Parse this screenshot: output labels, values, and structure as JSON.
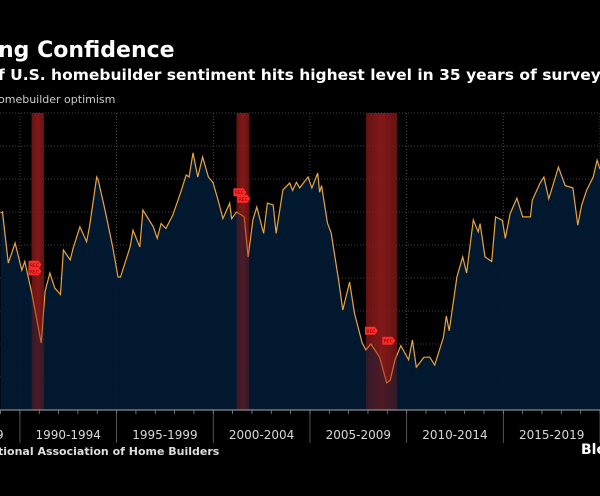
{
  "header": {
    "title": "ng Confidence",
    "subtitle": "f U.S. homebuilder sentiment hits highest level in 35 years of survey",
    "legend_label": "omebuilder optimism"
  },
  "footer": {
    "source": "tional Association of Home Builders",
    "brand": "Blo"
  },
  "colors": {
    "background": "#000000",
    "area_fill": "#021a33",
    "line": "#e8a444",
    "recession": "#8b1a1a",
    "marker": "#ff2a2a"
  },
  "chart_data": {
    "type": "area",
    "xlim": [
      1988.97,
      2020.0
    ],
    "ylim": [
      0,
      90
    ],
    "grid": true,
    "x_tick_labels": [
      {
        "label": "9",
        "at": 1988.5
      },
      {
        "label": "1990-1994",
        "at": 1992.5
      },
      {
        "label": "1995-1999",
        "at": 1997.5
      },
      {
        "label": "2000-2004",
        "at": 2002.5
      },
      {
        "label": "2005-2009",
        "at": 2007.5
      },
      {
        "label": "2010-2014",
        "at": 2012.5
      },
      {
        "label": "2015-2019",
        "at": 2017.5
      }
    ],
    "x_boundaries": [
      1990,
      1995,
      2000,
      2005,
      2010,
      2015,
      2020
    ],
    "y_gridlines": [
      10,
      20,
      30,
      40,
      50,
      60,
      70,
      80,
      90
    ],
    "recessions": [
      [
        1990.6,
        1991.25
      ],
      [
        2001.2,
        2001.85
      ],
      [
        2007.9,
        2009.5
      ]
    ],
    "markers": [
      {
        "label": "REC",
        "x": 1990.7,
        "y": 44
      },
      {
        "label": "REC",
        "x": 1990.7,
        "y": 42
      },
      {
        "label": "REC",
        "x": 2001.3,
        "y": 66
      },
      {
        "label": "REC",
        "x": 2001.5,
        "y": 64
      },
      {
        "label": "REC",
        "x": 2008.1,
        "y": 24
      },
      {
        "label": "REC",
        "x": 2009.0,
        "y": 21
      }
    ],
    "series": [
      {
        "x": [
          1989.0,
          1989.1,
          1989.4,
          1989.75,
          1990.1,
          1990.25,
          1990.6,
          1991.1,
          1991.3,
          1991.55,
          1991.8,
          1992.1,
          1992.25,
          1992.6,
          1992.75,
          1993.1,
          1993.45,
          1993.6,
          1993.97,
          1994.05,
          1994.4,
          1994.8,
          1995.07,
          1995.2,
          1995.7,
          1995.85,
          1996.2,
          1996.36,
          1996.9,
          1997.1,
          1997.3,
          1997.55,
          1997.9,
          1998.3,
          1998.6,
          1998.75,
          1998.95,
          1999.2,
          1999.45,
          1999.75,
          1999.98,
          2000.25,
          2000.5,
          2000.85,
          2000.95,
          2001.2,
          2001.6,
          2001.8,
          2002.05,
          2002.25,
          2002.6,
          2002.8,
          2003.1,
          2003.25,
          2003.6,
          2003.95,
          2004.1,
          2004.3,
          2004.47,
          2004.9,
          2005.1,
          2005.4,
          2005.5,
          2005.6,
          2005.9,
          2006.1,
          2006.5,
          2006.7,
          2007.05,
          2007.3,
          2007.7,
          2007.9,
          2008.15,
          2008.6,
          2008.97,
          2009.15,
          2009.4,
          2009.7,
          2010.1,
          2010.3,
          2010.5,
          2010.9,
          2011.2,
          2011.45,
          2011.9,
          2012.05,
          2012.2,
          2012.6,
          2012.9,
          2013.1,
          2013.45,
          2013.7,
          2013.8,
          2014.05,
          2014.4,
          2014.6,
          2014.95,
          2015.1,
          2015.35,
          2015.7,
          2016.0,
          2016.4,
          2016.5,
          2016.9,
          2017.1,
          2017.35,
          2017.85,
          2018.2,
          2018.6,
          2018.85,
          2019.05,
          2019.3,
          2019.65,
          2019.85,
          2020.0
        ],
        "y": [
          59.7,
          60,
          44.5,
          50.6,
          42.4,
          45,
          35.8,
          20.3,
          36,
          41.5,
          37,
          35,
          48.5,
          45.5,
          49,
          55.5,
          51,
          55.5,
          70.6,
          69.7,
          60.6,
          49.4,
          40.3,
          40.3,
          49.4,
          54.5,
          49.4,
          60.6,
          55.5,
          52,
          56.5,
          55,
          59,
          65.7,
          71.2,
          70.6,
          77.9,
          70.6,
          76.7,
          70.6,
          69,
          63.6,
          58,
          62.7,
          58,
          60,
          58.5,
          46.4,
          57.6,
          61.5,
          53.5,
          62.7,
          62.1,
          53.5,
          66.7,
          68.8,
          66.5,
          69,
          67.3,
          70.6,
          67.3,
          71.8,
          66,
          68,
          56.7,
          53.6,
          38.5,
          30.3,
          38.8,
          29.4,
          20.3,
          18.2,
          20,
          16,
          8.2,
          9,
          15.2,
          19.5,
          15.2,
          21.2,
          13,
          16,
          16,
          13.6,
          22,
          28.5,
          24,
          40.3,
          46.4,
          41.5,
          57.6,
          54,
          56.5,
          46.4,
          45,
          58.5,
          57.5,
          52,
          59.5,
          64.2,
          58.5,
          58.5,
          63.6,
          68.8,
          70.6,
          64,
          73.6,
          68,
          67.3,
          56,
          62,
          66.5,
          70.6,
          75.7,
          73
        ]
      }
    ]
  }
}
